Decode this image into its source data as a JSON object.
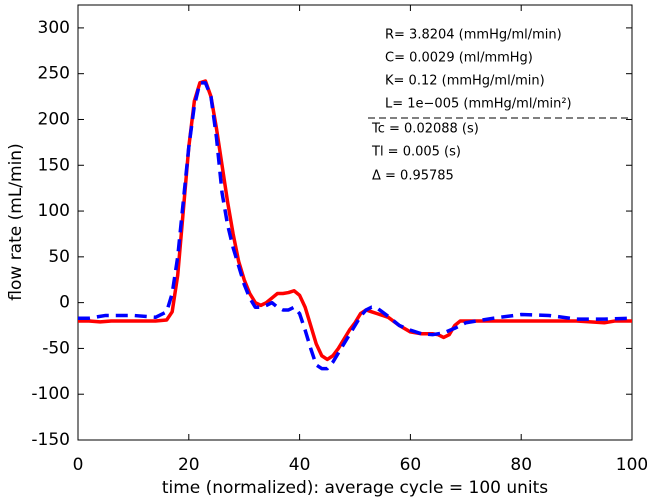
{
  "chart_data": {
    "type": "line",
    "xlabel": "time (normalized): average cycle = 100 units",
    "ylabel": "flow rate (mL/min)",
    "xlim": [
      0,
      100
    ],
    "xticks": [
      0,
      20,
      40,
      60,
      80,
      100
    ],
    "ylim": [
      -150,
      325
    ],
    "yticks": [
      -150,
      -100,
      -50,
      0,
      50,
      100,
      150,
      200,
      250,
      300
    ],
    "annotations": [
      "R= 3.8204   (mmHg/ml/min)",
      "C= 0.0029   (ml/mmHg)",
      "K= 0.12   (mmHg/ml/min)",
      "L= 1e−005   (mmHg/ml/min²)",
      "Tc = 0.02088   (s)",
      "Tl = 0.005   (s)",
      "Δ = 0.95785"
    ],
    "series": [
      {
        "color": "#ff0000",
        "dash": false,
        "x": [
          0,
          2,
          4,
          6,
          8,
          10,
          12,
          14,
          16,
          17,
          18,
          19,
          20,
          21,
          22,
          23,
          24,
          25,
          26,
          27,
          28,
          29,
          30,
          31,
          32,
          33,
          34,
          35,
          36,
          37,
          38,
          39,
          40,
          41,
          42,
          43,
          44,
          45,
          46,
          47,
          48,
          49,
          50,
          51,
          52,
          53,
          54,
          55,
          56,
          58,
          60,
          62,
          64,
          65,
          66,
          67,
          68,
          69,
          70,
          75,
          80,
          85,
          90,
          95,
          97,
          100
        ],
        "values": [
          -20,
          -20,
          -21,
          -20,
          -20,
          -20,
          -20,
          -20,
          -19,
          -10,
          30,
          100,
          170,
          220,
          240,
          242,
          225,
          190,
          150,
          110,
          75,
          45,
          25,
          10,
          0,
          -3,
          0,
          5,
          10,
          10,
          11,
          13,
          8,
          -5,
          -25,
          -45,
          -58,
          -62,
          -58,
          -50,
          -40,
          -30,
          -22,
          -12,
          -8,
          -10,
          -12,
          -14,
          -16,
          -25,
          -32,
          -34,
          -34,
          -35,
          -38,
          -35,
          -25,
          -20,
          -20,
          -20,
          -20,
          -20,
          -20,
          -22,
          -20,
          -20
        ]
      },
      {
        "color": "#0000ff",
        "dash": true,
        "x": [
          0,
          2,
          5,
          10,
          14,
          16,
          17,
          18,
          19,
          20,
          21,
          22,
          23,
          24,
          25,
          26,
          27,
          28,
          29,
          30,
          31,
          32,
          33,
          34,
          35,
          36,
          37,
          38,
          39,
          40,
          41,
          42,
          43,
          44,
          45,
          46,
          47,
          48,
          49,
          50,
          51,
          52,
          53,
          54,
          56,
          58,
          60,
          62,
          64,
          66,
          68,
          70,
          75,
          80,
          85,
          90,
          95,
          100
        ],
        "values": [
          -17,
          -17,
          -14,
          -14,
          -16,
          -10,
          10,
          50,
          110,
          170,
          215,
          240,
          240,
          225,
          180,
          120,
          85,
          60,
          40,
          20,
          5,
          -5,
          -5,
          -3,
          0,
          -5,
          -8,
          -8,
          -5,
          -12,
          -30,
          -50,
          -68,
          -72,
          -72,
          -65,
          -55,
          -45,
          -35,
          -25,
          -15,
          -8,
          -5,
          -6,
          -15,
          -25,
          -30,
          -34,
          -35,
          -33,
          -28,
          -22,
          -17,
          -13,
          -14,
          -18,
          -18,
          -17
        ]
      }
    ]
  }
}
